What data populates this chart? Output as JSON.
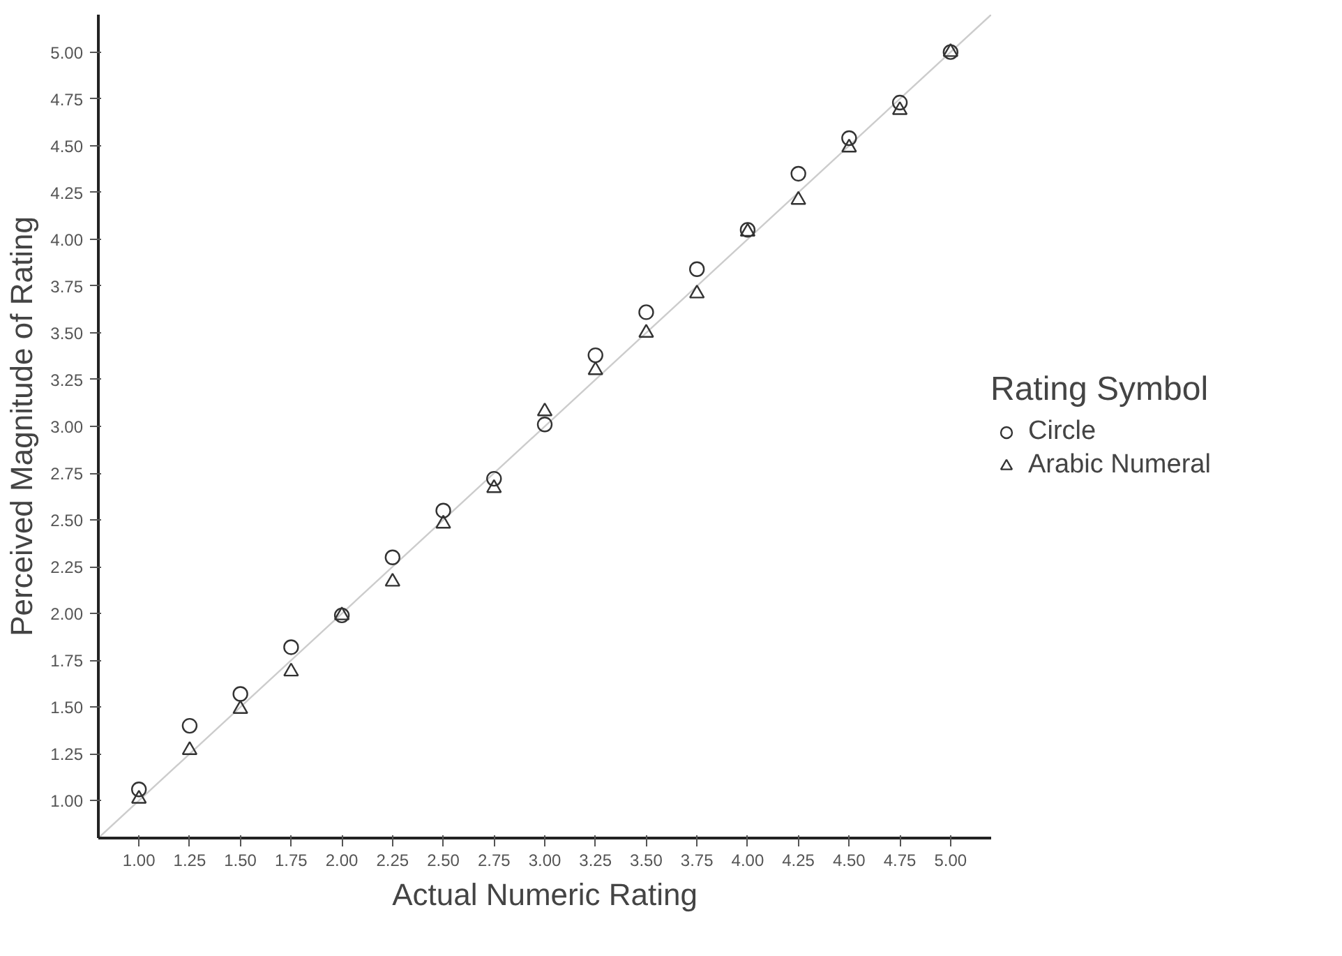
{
  "chart_data": {
    "type": "scatter",
    "xlabel": "Actual Numeric Rating",
    "ylabel": "Perceived Magnitude of Rating",
    "legend_title": "Rating Symbol",
    "legend": "right",
    "x": [
      1.0,
      1.25,
      1.5,
      1.75,
      2.0,
      2.25,
      2.5,
      2.75,
      3.0,
      3.25,
      3.5,
      3.75,
      4.0,
      4.25,
      4.5,
      4.75,
      5.0
    ],
    "xlim": [
      0.8,
      5.2
    ],
    "ylim": [
      0.8,
      5.2
    ],
    "xticks": [
      {
        "value": 1.0,
        "label": "1.00"
      },
      {
        "value": 1.25,
        "label": "1.25"
      },
      {
        "value": 1.5,
        "label": "1.50"
      },
      {
        "value": 1.75,
        "label": "1.75"
      },
      {
        "value": 2.0,
        "label": "2.00"
      },
      {
        "value": 2.25,
        "label": "2.25"
      },
      {
        "value": 2.5,
        "label": "2.50"
      },
      {
        "value": 2.75,
        "label": "2.75"
      },
      {
        "value": 3.0,
        "label": "3.00"
      },
      {
        "value": 3.25,
        "label": "3.25"
      },
      {
        "value": 3.5,
        "label": "3.50"
      },
      {
        "value": 3.75,
        "label": "3.75"
      },
      {
        "value": 4.0,
        "label": "4.00"
      },
      {
        "value": 4.25,
        "label": "4.25"
      },
      {
        "value": 4.5,
        "label": "4.50"
      },
      {
        "value": 4.75,
        "label": "4.75"
      },
      {
        "value": 5.0,
        "label": "5.00"
      }
    ],
    "yticks": [
      {
        "value": 1.0,
        "label": "1.00"
      },
      {
        "value": 1.25,
        "label": "1.25"
      },
      {
        "value": 1.5,
        "label": "1.50"
      },
      {
        "value": 1.75,
        "label": "1.75"
      },
      {
        "value": 2.0,
        "label": "2.00"
      },
      {
        "value": 2.25,
        "label": "2.25"
      },
      {
        "value": 2.5,
        "label": "2.50"
      },
      {
        "value": 2.75,
        "label": "2.75"
      },
      {
        "value": 3.0,
        "label": "3.00"
      },
      {
        "value": 3.25,
        "label": "3.25"
      },
      {
        "value": 3.5,
        "label": "3.50"
      },
      {
        "value": 3.75,
        "label": "3.75"
      },
      {
        "value": 4.0,
        "label": "4.00"
      },
      {
        "value": 4.25,
        "label": "4.25"
      },
      {
        "value": 4.5,
        "label": "4.50"
      },
      {
        "value": 4.75,
        "label": "4.75"
      },
      {
        "value": 5.0,
        "label": "5.00"
      }
    ],
    "grid": false,
    "series": [
      {
        "type": "line",
        "color": "#cccccc",
        "x": [
          0.8,
          5.2
        ],
        "values": [
          0.8,
          5.2
        ],
        "line_style": "solid"
      },
      {
        "name": "Circle",
        "color": "#333333",
        "marker": "circle",
        "values": [
          1.06,
          1.4,
          1.57,
          1.82,
          1.99,
          2.3,
          2.55,
          2.72,
          3.01,
          3.38,
          3.61,
          3.84,
          4.05,
          4.35,
          4.54,
          4.73,
          5.0
        ]
      },
      {
        "name": "Arabic Numeral",
        "color": "#333333",
        "marker": "triangle",
        "values": [
          1.01,
          1.27,
          1.49,
          1.69,
          1.99,
          2.17,
          2.48,
          2.67,
          3.08,
          3.3,
          3.5,
          3.71,
          4.04,
          4.21,
          4.49,
          4.69,
          5.0
        ]
      }
    ]
  }
}
